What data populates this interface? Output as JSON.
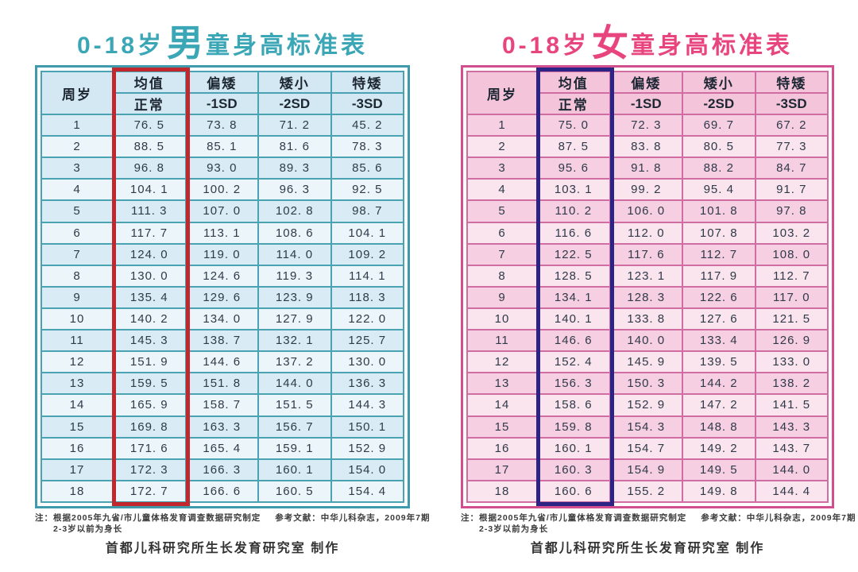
{
  "boys": {
    "title_prefix": "0-18岁",
    "title_gender": "男",
    "title_suffix": "童身高标准表",
    "theme": {
      "title": "#3aa6b6",
      "accent": "#3f9aab",
      "grid": "#4aa3b3",
      "header_bg": "#d3e8f2",
      "row_odd": "#d9ecf5",
      "row_even": "#ecf6fa",
      "highlight": "#c1272d"
    },
    "header": {
      "age": "周岁",
      "col1_top": "均值",
      "col1_bottom": "正常",
      "col2_top": "偏矮",
      "col2_bottom": "-1SD",
      "col3_top": "矮小",
      "col3_bottom": "-2SD",
      "col4_top": "特矮",
      "col4_bottom": "-3SD"
    },
    "rows": [
      [
        "1",
        "76. 5",
        "73. 8",
        "71. 2",
        "45. 2"
      ],
      [
        "2",
        "88. 5",
        "85. 1",
        "81. 6",
        "78. 3"
      ],
      [
        "3",
        "96. 8",
        "93. 0",
        "89. 3",
        "85. 6"
      ],
      [
        "4",
        "104. 1",
        "100. 2",
        "96. 3",
        "92. 5"
      ],
      [
        "5",
        "111. 3",
        "107. 0",
        "102. 8",
        "98. 7"
      ],
      [
        "6",
        "117. 7",
        "113. 1",
        "108. 6",
        "104. 1"
      ],
      [
        "7",
        "124. 0",
        "119. 0",
        "114. 0",
        "109. 2"
      ],
      [
        "8",
        "130. 0",
        "124. 6",
        "119. 3",
        "114. 1"
      ],
      [
        "9",
        "135. 4",
        "129. 6",
        "123. 9",
        "118. 3"
      ],
      [
        "10",
        "140. 2",
        "134. 0",
        "127. 9",
        "122. 0"
      ],
      [
        "11",
        "145. 3",
        "138. 7",
        "132. 1",
        "125. 7"
      ],
      [
        "12",
        "151. 9",
        "144. 6",
        "137. 2",
        "130. 0"
      ],
      [
        "13",
        "159. 5",
        "151. 8",
        "144. 0",
        "136. 3"
      ],
      [
        "14",
        "165. 9",
        "158. 7",
        "151. 5",
        "144. 3"
      ],
      [
        "15",
        "169. 8",
        "163. 3",
        "156. 7",
        "150. 1"
      ],
      [
        "16",
        "171. 6",
        "165. 4",
        "159. 1",
        "152. 9"
      ],
      [
        "17",
        "172. 3",
        "166. 3",
        "160. 1",
        "154. 0"
      ],
      [
        "18",
        "172. 7",
        "166. 6",
        "160. 5",
        "154. 4"
      ]
    ]
  },
  "girls": {
    "title_prefix": "0-18岁",
    "title_gender": "女",
    "title_suffix": "童身高标准表",
    "theme": {
      "title": "#e8457f",
      "accent": "#d14f8e",
      "grid": "#d06da2",
      "header_bg": "#f3c4da",
      "row_odd": "#f6cfe2",
      "row_even": "#fae4ee",
      "highlight": "#2b2484"
    },
    "header": {
      "age": "周岁",
      "col1_top": "均值",
      "col1_bottom": "正常",
      "col2_top": "偏矮",
      "col2_bottom": "-1SD",
      "col3_top": "矮小",
      "col3_bottom": "-2SD",
      "col4_top": "特矮",
      "col4_bottom": "-3SD"
    },
    "rows": [
      [
        "1",
        "75. 0",
        "72. 3",
        "69. 7",
        "67. 2"
      ],
      [
        "2",
        "87. 5",
        "83. 8",
        "80. 5",
        "77. 3"
      ],
      [
        "3",
        "95. 6",
        "91. 8",
        "88. 2",
        "84. 7"
      ],
      [
        "4",
        "103. 1",
        "99. 2",
        "95. 4",
        "91. 7"
      ],
      [
        "5",
        "110. 2",
        "106. 0",
        "101. 8",
        "97. 8"
      ],
      [
        "6",
        "116. 6",
        "112. 0",
        "107. 8",
        "103. 2"
      ],
      [
        "7",
        "122. 5",
        "117. 6",
        "112. 7",
        "108. 0"
      ],
      [
        "8",
        "128. 5",
        "123. 1",
        "117. 9",
        "112. 7"
      ],
      [
        "9",
        "134. 1",
        "128. 3",
        "122. 6",
        "117. 0"
      ],
      [
        "10",
        "140. 1",
        "133. 8",
        "127. 6",
        "121. 5"
      ],
      [
        "11",
        "146. 6",
        "140. 0",
        "133. 4",
        "126. 9"
      ],
      [
        "12",
        "152. 4",
        "145. 9",
        "139. 5",
        "133. 0"
      ],
      [
        "13",
        "156. 3",
        "150. 3",
        "144. 2",
        "138. 2"
      ],
      [
        "14",
        "158. 6",
        "152. 9",
        "147. 2",
        "141. 5"
      ],
      [
        "15",
        "159. 8",
        "154. 3",
        "148. 8",
        "143. 3"
      ],
      [
        "16",
        "160. 1",
        "154. 7",
        "149. 2",
        "143. 7"
      ],
      [
        "17",
        "160. 3",
        "154. 9",
        "149. 5",
        "144. 0"
      ],
      [
        "18",
        "160. 6",
        "155. 2",
        "149. 8",
        "144. 4"
      ]
    ]
  },
  "footer": {
    "note_label": "注：",
    "note_line1": "根据2005年九省/市儿童体格发育调查数据研究制定",
    "note_ref": "参考文献：中华儿科杂志，2009年7期",
    "note_line2": "2-3岁以前为身长",
    "producer": "首都儿科研究所生长发育研究室  制作"
  }
}
